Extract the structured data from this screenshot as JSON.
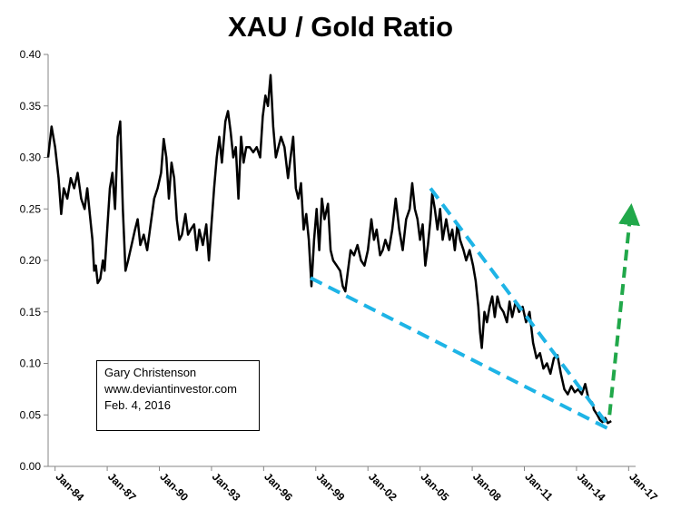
{
  "chart_data": {
    "type": "line",
    "title": "XAU / Gold Ratio",
    "xlabel": "",
    "ylabel": "",
    "ylim": [
      0,
      0.4
    ],
    "xlim": [
      1983.6,
      2017.4
    ],
    "y_ticks": [
      0.0,
      0.05,
      0.1,
      0.15,
      0.2,
      0.25,
      0.3,
      0.35,
      0.4
    ],
    "y_tick_labels": [
      "0.00",
      "0.05",
      "0.10",
      "0.15",
      "0.20",
      "0.25",
      "0.30",
      "0.35",
      "0.40"
    ],
    "x_ticks": [
      1984,
      1987,
      1990,
      1993,
      1996,
      1999,
      2002,
      2005,
      2008,
      2011,
      2014,
      2017
    ],
    "x_tick_labels": [
      "Jan-84",
      "Jan-87",
      "Jan-90",
      "Jan-93",
      "Jan-96",
      "Jan-99",
      "Jan-02",
      "Jan-05",
      "Jan-08",
      "Jan-11",
      "Jan-14",
      "Jan-17"
    ],
    "grid": false,
    "legend": "none",
    "series": [
      {
        "color": "#000000",
        "points": [
          [
            1983.6,
            0.3
          ],
          [
            1983.8,
            0.33
          ],
          [
            1984.0,
            0.31
          ],
          [
            1984.2,
            0.28
          ],
          [
            1984.35,
            0.245
          ],
          [
            1984.5,
            0.27
          ],
          [
            1984.7,
            0.26
          ],
          [
            1984.9,
            0.28
          ],
          [
            1985.1,
            0.27
          ],
          [
            1985.3,
            0.285
          ],
          [
            1985.5,
            0.26
          ],
          [
            1985.7,
            0.25
          ],
          [
            1985.85,
            0.27
          ],
          [
            1986.0,
            0.245
          ],
          [
            1986.15,
            0.22
          ],
          [
            1986.25,
            0.19
          ],
          [
            1986.35,
            0.195
          ],
          [
            1986.45,
            0.178
          ],
          [
            1986.6,
            0.182
          ],
          [
            1986.75,
            0.2
          ],
          [
            1986.85,
            0.19
          ],
          [
            1987.0,
            0.23
          ],
          [
            1987.15,
            0.27
          ],
          [
            1987.3,
            0.285
          ],
          [
            1987.45,
            0.25
          ],
          [
            1987.6,
            0.32
          ],
          [
            1987.75,
            0.335
          ],
          [
            1987.9,
            0.25
          ],
          [
            1988.05,
            0.19
          ],
          [
            1988.2,
            0.2
          ],
          [
            1988.4,
            0.215
          ],
          [
            1988.6,
            0.23
          ],
          [
            1988.75,
            0.24
          ],
          [
            1988.9,
            0.215
          ],
          [
            1989.1,
            0.225
          ],
          [
            1989.3,
            0.21
          ],
          [
            1989.5,
            0.235
          ],
          [
            1989.7,
            0.26
          ],
          [
            1989.9,
            0.27
          ],
          [
            1990.1,
            0.285
          ],
          [
            1990.25,
            0.318
          ],
          [
            1990.4,
            0.3
          ],
          [
            1990.55,
            0.26
          ],
          [
            1990.7,
            0.295
          ],
          [
            1990.85,
            0.28
          ],
          [
            1991.0,
            0.24
          ],
          [
            1991.15,
            0.22
          ],
          [
            1991.3,
            0.225
          ],
          [
            1991.5,
            0.245
          ],
          [
            1991.65,
            0.225
          ],
          [
            1991.8,
            0.23
          ],
          [
            1992.0,
            0.235
          ],
          [
            1992.15,
            0.21
          ],
          [
            1992.3,
            0.23
          ],
          [
            1992.5,
            0.215
          ],
          [
            1992.7,
            0.235
          ],
          [
            1992.85,
            0.2
          ],
          [
            1993.0,
            0.235
          ],
          [
            1993.15,
            0.27
          ],
          [
            1993.3,
            0.3
          ],
          [
            1993.45,
            0.32
          ],
          [
            1993.6,
            0.295
          ],
          [
            1993.8,
            0.335
          ],
          [
            1993.95,
            0.345
          ],
          [
            1994.1,
            0.325
          ],
          [
            1994.25,
            0.3
          ],
          [
            1994.4,
            0.31
          ],
          [
            1994.55,
            0.26
          ],
          [
            1994.7,
            0.32
          ],
          [
            1994.85,
            0.295
          ],
          [
            1995.0,
            0.31
          ],
          [
            1995.2,
            0.31
          ],
          [
            1995.4,
            0.305
          ],
          [
            1995.6,
            0.31
          ],
          [
            1995.8,
            0.3
          ],
          [
            1995.95,
            0.34
          ],
          [
            1996.1,
            0.36
          ],
          [
            1996.25,
            0.35
          ],
          [
            1996.4,
            0.38
          ],
          [
            1996.55,
            0.33
          ],
          [
            1996.7,
            0.3
          ],
          [
            1996.85,
            0.31
          ],
          [
            1997.0,
            0.32
          ],
          [
            1997.2,
            0.31
          ],
          [
            1997.4,
            0.28
          ],
          [
            1997.55,
            0.3
          ],
          [
            1997.7,
            0.32
          ],
          [
            1997.85,
            0.27
          ],
          [
            1998.0,
            0.26
          ],
          [
            1998.15,
            0.275
          ],
          [
            1998.3,
            0.23
          ],
          [
            1998.45,
            0.245
          ],
          [
            1998.6,
            0.22
          ],
          [
            1998.75,
            0.175
          ],
          [
            1998.9,
            0.22
          ],
          [
            1999.05,
            0.25
          ],
          [
            1999.2,
            0.21
          ],
          [
            1999.35,
            0.26
          ],
          [
            1999.5,
            0.24
          ],
          [
            1999.7,
            0.255
          ],
          [
            1999.85,
            0.21
          ],
          [
            2000.0,
            0.2
          ],
          [
            2000.2,
            0.195
          ],
          [
            2000.4,
            0.19
          ],
          [
            2000.55,
            0.175
          ],
          [
            2000.7,
            0.17
          ],
          [
            2000.85,
            0.19
          ],
          [
            2001.0,
            0.21
          ],
          [
            2001.2,
            0.205
          ],
          [
            2001.4,
            0.215
          ],
          [
            2001.6,
            0.2
          ],
          [
            2001.8,
            0.195
          ],
          [
            2002.0,
            0.21
          ],
          [
            2002.2,
            0.24
          ],
          [
            2002.35,
            0.22
          ],
          [
            2002.5,
            0.23
          ],
          [
            2002.7,
            0.205
          ],
          [
            2002.85,
            0.21
          ],
          [
            2003.0,
            0.22
          ],
          [
            2003.2,
            0.21
          ],
          [
            2003.4,
            0.23
          ],
          [
            2003.6,
            0.26
          ],
          [
            2003.8,
            0.23
          ],
          [
            2004.0,
            0.21
          ],
          [
            2004.2,
            0.24
          ],
          [
            2004.4,
            0.25
          ],
          [
            2004.55,
            0.275
          ],
          [
            2004.7,
            0.25
          ],
          [
            2004.85,
            0.24
          ],
          [
            2005.0,
            0.22
          ],
          [
            2005.15,
            0.235
          ],
          [
            2005.3,
            0.195
          ],
          [
            2005.45,
            0.215
          ],
          [
            2005.6,
            0.24
          ],
          [
            2005.7,
            0.265
          ],
          [
            2005.85,
            0.25
          ],
          [
            2006.0,
            0.23
          ],
          [
            2006.15,
            0.25
          ],
          [
            2006.3,
            0.22
          ],
          [
            2006.5,
            0.24
          ],
          [
            2006.7,
            0.22
          ],
          [
            2006.85,
            0.23
          ],
          [
            2007.0,
            0.21
          ],
          [
            2007.15,
            0.235
          ],
          [
            2007.3,
            0.22
          ],
          [
            2007.5,
            0.21
          ],
          [
            2007.65,
            0.2
          ],
          [
            2007.85,
            0.21
          ],
          [
            2008.05,
            0.195
          ],
          [
            2008.2,
            0.18
          ],
          [
            2008.35,
            0.155
          ],
          [
            2008.45,
            0.13
          ],
          [
            2008.55,
            0.115
          ],
          [
            2008.7,
            0.15
          ],
          [
            2008.85,
            0.14
          ],
          [
            2009.0,
            0.155
          ],
          [
            2009.15,
            0.165
          ],
          [
            2009.3,
            0.145
          ],
          [
            2009.45,
            0.165
          ],
          [
            2009.6,
            0.155
          ],
          [
            2009.8,
            0.15
          ],
          [
            2010.0,
            0.14
          ],
          [
            2010.15,
            0.16
          ],
          [
            2010.3,
            0.145
          ],
          [
            2010.5,
            0.16
          ],
          [
            2010.7,
            0.15
          ],
          [
            2010.9,
            0.155
          ],
          [
            2011.1,
            0.14
          ],
          [
            2011.3,
            0.15
          ],
          [
            2011.5,
            0.12
          ],
          [
            2011.7,
            0.105
          ],
          [
            2011.9,
            0.11
          ],
          [
            2012.1,
            0.095
          ],
          [
            2012.3,
            0.1
          ],
          [
            2012.5,
            0.09
          ],
          [
            2012.7,
            0.105
          ],
          [
            2012.9,
            0.108
          ],
          [
            2013.1,
            0.09
          ],
          [
            2013.3,
            0.075
          ],
          [
            2013.5,
            0.07
          ],
          [
            2013.7,
            0.078
          ],
          [
            2013.9,
            0.072
          ],
          [
            2014.1,
            0.075
          ],
          [
            2014.3,
            0.07
          ],
          [
            2014.5,
            0.08
          ],
          [
            2014.7,
            0.065
          ],
          [
            2014.9,
            0.062
          ],
          [
            2015.0,
            0.055
          ],
          [
            2015.2,
            0.05
          ],
          [
            2015.35,
            0.045
          ],
          [
            2015.5,
            0.043
          ],
          [
            2015.65,
            0.047
          ],
          [
            2015.8,
            0.042
          ],
          [
            2016.0,
            0.044
          ]
        ]
      }
    ],
    "annotations": [
      {
        "type": "trendline",
        "color": "#1eb4e6",
        "from": [
          1998.7,
          0.183
        ],
        "to": [
          2015.9,
          0.036
        ]
      },
      {
        "type": "trendline",
        "color": "#1eb4e6",
        "from": [
          2005.6,
          0.27
        ],
        "to": [
          2015.9,
          0.038
        ]
      },
      {
        "type": "arrow",
        "color": "#21a84a",
        "from": [
          2015.9,
          0.05
        ],
        "to": [
          2017.1,
          0.245
        ]
      }
    ]
  },
  "note": {
    "line1": "Gary Christenson",
    "line2": "www.deviantinvestor.com",
    "line3": "Feb. 4, 2016"
  }
}
